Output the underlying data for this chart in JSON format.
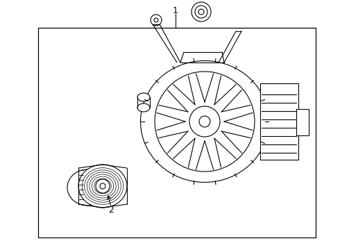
{
  "bg_color": "#ffffff",
  "border_color": "#000000",
  "line_color": "#000000",
  "label1": "1",
  "label2": "2",
  "title": "",
  "fig_width": 4.9,
  "fig_height": 3.6,
  "dpi": 100
}
